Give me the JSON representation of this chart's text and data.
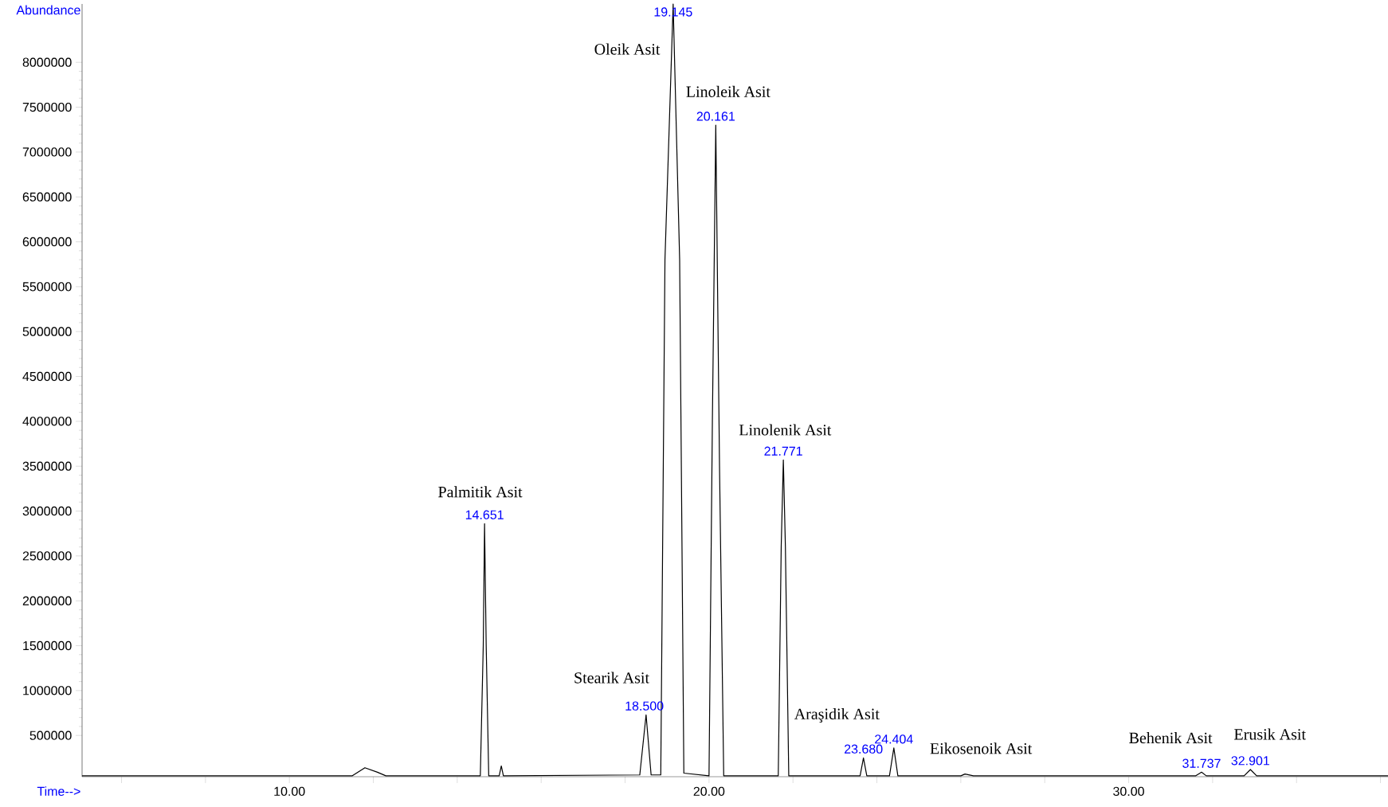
{
  "chart_data": {
    "type": "line",
    "xlabel": "Time-->",
    "ylabel": "Abundance",
    "xlim": [
      5.06,
      36.18
    ],
    "ylim": [
      40000,
      8650000
    ],
    "xticks": [
      {
        "value": 6,
        "label": null
      },
      {
        "value": 8,
        "label": null
      },
      {
        "value": 10,
        "label": "10.00"
      },
      {
        "value": 12,
        "label": null
      },
      {
        "value": 14,
        "label": null
      },
      {
        "value": 16,
        "label": null
      },
      {
        "value": 18,
        "label": null
      },
      {
        "value": 20,
        "label": "20.00"
      },
      {
        "value": 22,
        "label": null
      },
      {
        "value": 24,
        "label": null
      },
      {
        "value": 26,
        "label": null
      },
      {
        "value": 28,
        "label": null
      },
      {
        "value": 30,
        "label": "30.00"
      },
      {
        "value": 32,
        "label": null
      },
      {
        "value": 34,
        "label": null
      },
      {
        "value": 36,
        "label": null
      }
    ],
    "yticks": [
      500000,
      1000000,
      1500000,
      2000000,
      2500000,
      3000000,
      3500000,
      4000000,
      4500000,
      5000000,
      5500000,
      6000000,
      6500000,
      7000000,
      7500000,
      8000000
    ],
    "grid": false,
    "marker": "none",
    "line_style": "solid",
    "series": [
      {
        "color": "#000000",
        "x": [
          5.06,
          11.5,
          11.8,
          12.1,
          12.3,
          14.55,
          14.62,
          14.651,
          14.69,
          14.75,
          15.0,
          15.05,
          15.1,
          18.35,
          18.5,
          18.62,
          18.85,
          18.95,
          19.145,
          19.3,
          19.4,
          20.0,
          20.08,
          20.161,
          20.25,
          20.35,
          21.65,
          21.72,
          21.771,
          21.82,
          21.9,
          23.6,
          23.68,
          23.76,
          24.3,
          24.404,
          24.5,
          26.0,
          26.1,
          26.3,
          31.6,
          31.737,
          31.85,
          32.75,
          32.901,
          33.05,
          36.18
        ],
        "values": [
          50000,
          50000,
          140000,
          90000,
          50000,
          50000,
          1500000,
          2860000,
          1500000,
          50000,
          50000,
          160000,
          50000,
          60000,
          730000,
          60000,
          60000,
          5800000,
          8650000,
          5800000,
          80000,
          50000,
          4000000,
          7300000,
          3500000,
          50000,
          50000,
          2600000,
          3570000,
          2600000,
          50000,
          50000,
          250000,
          50000,
          50000,
          360000,
          50000,
          50000,
          70000,
          50000,
          50000,
          90000,
          50000,
          50000,
          120000,
          50000,
          50000
        ]
      }
    ],
    "annotations": [
      {
        "text": "14.651",
        "x": 14.651,
        "y": 2860000
      },
      {
        "text": "18.500",
        "x": 18.5,
        "y": 730000
      },
      {
        "text": "19.145",
        "x": 19.145,
        "y": 8650000
      },
      {
        "text": "20.161",
        "x": 20.161,
        "y": 7300000
      },
      {
        "text": "21.771",
        "x": 21.771,
        "y": 3570000
      },
      {
        "text": "23.680",
        "x": 23.68,
        "y": 250000
      },
      {
        "text": "24.404",
        "x": 24.404,
        "y": 360000
      },
      {
        "text": "31.737",
        "x": 31.737,
        "y": 90000
      },
      {
        "text": "32.901",
        "x": 32.901,
        "y": 120000
      },
      {
        "text": "Palmitik Asit",
        "x": 14.651,
        "y": 2860000
      },
      {
        "text": "Stearik Asit",
        "x": 18.5,
        "y": 730000
      },
      {
        "text": "Oleik Asit",
        "x": 19.145,
        "y": 8650000
      },
      {
        "text": "Linoleik Asit",
        "x": 20.161,
        "y": 7300000
      },
      {
        "text": "Linolenik Asit",
        "x": 21.771,
        "y": 3570000
      },
      {
        "text": "Araşidik Asit",
        "x": 23.68,
        "y": 250000
      },
      {
        "text": "Eikosenoik Asit",
        "x": 26.1,
        "y": 70000
      },
      {
        "text": "Behenik Asit",
        "x": 31.737,
        "y": 90000
      },
      {
        "text": "Erusik Asit",
        "x": 32.901,
        "y": 120000
      }
    ]
  }
}
